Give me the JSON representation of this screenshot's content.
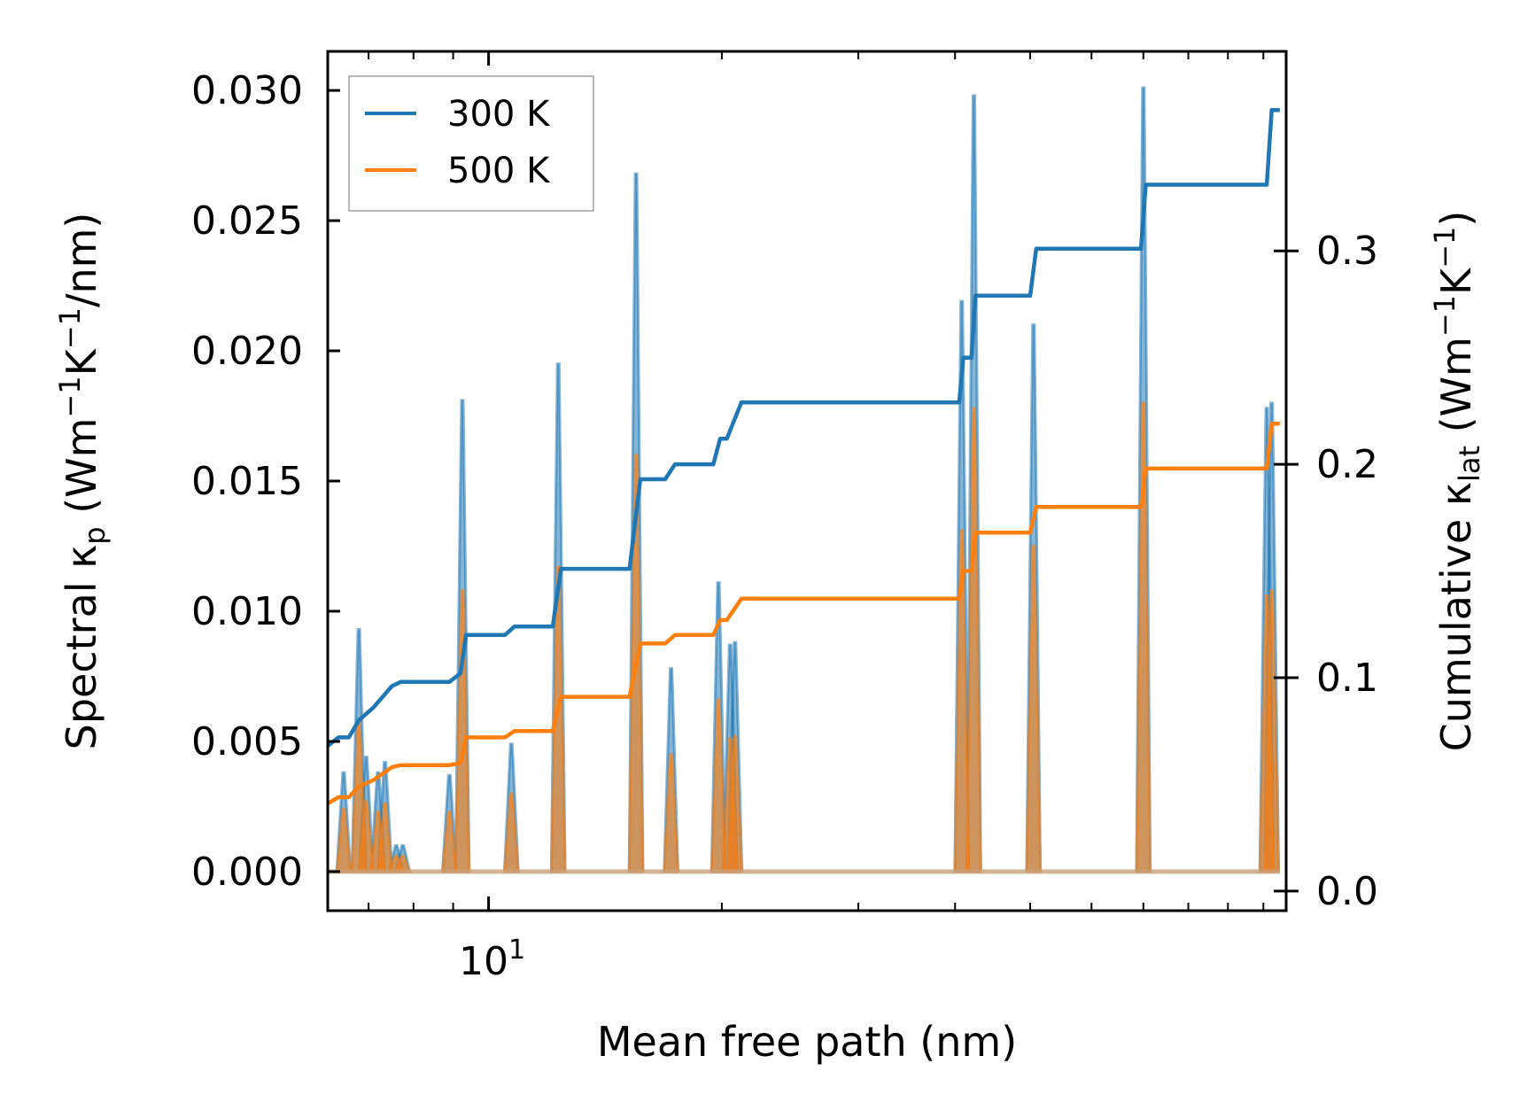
{
  "chart_data": {
    "type": "line",
    "xscale": "log",
    "xlabel": "Mean free path (nm)",
    "xlim": [
      6.2,
      107
    ],
    "x_ticks": [
      {
        "value": 10,
        "label": "10",
        "exponent": "1"
      }
    ],
    "x_minor_ticks": [
      7,
      8,
      9,
      20,
      30,
      40,
      50,
      60,
      70,
      80,
      90,
      100
    ],
    "left_axis": {
      "label_parts": [
        "Spectral κ",
        "p",
        " (Wm",
        "−1",
        "K",
        "−1",
        "/nm)"
      ],
      "ylim": [
        -0.0015,
        0.0315
      ],
      "ticks": [
        {
          "value": 0.0,
          "label": "0.000"
        },
        {
          "value": 0.005,
          "label": "0.005"
        },
        {
          "value": 0.01,
          "label": "0.010"
        },
        {
          "value": 0.015,
          "label": "0.015"
        },
        {
          "value": 0.02,
          "label": "0.020"
        },
        {
          "value": 0.025,
          "label": "0.025"
        },
        {
          "value": 0.03,
          "label": "0.030"
        }
      ]
    },
    "right_axis": {
      "label_parts": [
        "Cumulative κ",
        "lat",
        " (Wm",
        "−1",
        "K",
        "−1",
        ")"
      ],
      "ylim": [
        -0.0092,
        0.3935
      ],
      "ticks": [
        {
          "value": 0.0,
          "label": "0.0"
        },
        {
          "value": 0.1,
          "label": "0.1"
        },
        {
          "value": 0.2,
          "label": "0.2"
        },
        {
          "value": 0.3,
          "label": "0.3"
        }
      ]
    },
    "legend": {
      "position": "top-left",
      "entries": [
        {
          "name": "300 K",
          "color": "#1f77b4"
        },
        {
          "name": "500 K",
          "color": "#ff7f0e"
        }
      ]
    },
    "spectral_series": [
      {
        "name": "300 K spectral",
        "color": "#1f77b4",
        "peaks": [
          {
            "x": 6.5,
            "y": 0.0038
          },
          {
            "x": 6.8,
            "y": 0.0093
          },
          {
            "x": 6.95,
            "y": 0.0044
          },
          {
            "x": 7.2,
            "y": 0.0038
          },
          {
            "x": 7.35,
            "y": 0.0042
          },
          {
            "x": 7.6,
            "y": 0.001
          },
          {
            "x": 7.75,
            "y": 0.001
          },
          {
            "x": 8.9,
            "y": 0.0037
          },
          {
            "x": 9.25,
            "y": 0.0181
          },
          {
            "x": 10.7,
            "y": 0.0049
          },
          {
            "x": 12.3,
            "y": 0.0195
          },
          {
            "x": 15.5,
            "y": 0.0268
          },
          {
            "x": 17.2,
            "y": 0.0078
          },
          {
            "x": 19.8,
            "y": 0.0111
          },
          {
            "x": 20.5,
            "y": 0.0087
          },
          {
            "x": 20.8,
            "y": 0.0088
          },
          {
            "x": 40.8,
            "y": 0.0219
          },
          {
            "x": 42.3,
            "y": 0.0298
          },
          {
            "x": 50.5,
            "y": 0.021
          },
          {
            "x": 70.0,
            "y": 0.0301
          },
          {
            "x": 101.0,
            "y": 0.0178
          },
          {
            "x": 102.5,
            "y": 0.018
          }
        ]
      },
      {
        "name": "500 K spectral",
        "color": "#ff7f0e",
        "peaks": [
          {
            "x": 6.5,
            "y": 0.0024
          },
          {
            "x": 6.8,
            "y": 0.0058
          },
          {
            "x": 6.95,
            "y": 0.0027
          },
          {
            "x": 7.2,
            "y": 0.0023
          },
          {
            "x": 7.35,
            "y": 0.0026
          },
          {
            "x": 7.6,
            "y": 0.0006
          },
          {
            "x": 7.75,
            "y": 0.0006
          },
          {
            "x": 8.9,
            "y": 0.0023
          },
          {
            "x": 9.25,
            "y": 0.0108
          },
          {
            "x": 10.7,
            "y": 0.003
          },
          {
            "x": 12.3,
            "y": 0.0117
          },
          {
            "x": 15.5,
            "y": 0.016
          },
          {
            "x": 17.2,
            "y": 0.0045
          },
          {
            "x": 19.8,
            "y": 0.0066
          },
          {
            "x": 20.5,
            "y": 0.0051
          },
          {
            "x": 20.8,
            "y": 0.0052
          },
          {
            "x": 40.8,
            "y": 0.0131
          },
          {
            "x": 42.3,
            "y": 0.0178
          },
          {
            "x": 50.5,
            "y": 0.0125
          },
          {
            "x": 70.0,
            "y": 0.018
          },
          {
            "x": 101.0,
            "y": 0.0106
          },
          {
            "x": 102.5,
            "y": 0.0108
          }
        ]
      }
    ],
    "cumulative_series": [
      {
        "name": "300 K",
        "color": "#1f77b4",
        "x": [
          6.2,
          6.4,
          6.6,
          6.8,
          6.9,
          7.0,
          7.1,
          7.3,
          7.5,
          7.7,
          8.9,
          9.2,
          9.35,
          10.5,
          10.8,
          12.1,
          12.4,
          15.2,
          15.7,
          16.9,
          17.4,
          19.5,
          19.9,
          20.3,
          21.2,
          40.5,
          41.0,
          42.0,
          42.5,
          50.0,
          50.9,
          69.5,
          70.5,
          101.0,
          102.5,
          105.0
        ],
        "y": [
          0.068,
          0.072,
          0.072,
          0.08,
          0.082,
          0.084,
          0.086,
          0.091,
          0.096,
          0.098,
          0.098,
          0.102,
          0.12,
          0.12,
          0.124,
          0.124,
          0.151,
          0.151,
          0.193,
          0.193,
          0.2,
          0.2,
          0.212,
          0.212,
          0.229,
          0.229,
          0.25,
          0.25,
          0.279,
          0.279,
          0.301,
          0.301,
          0.331,
          0.331,
          0.366,
          0.366
        ]
      },
      {
        "name": "500 K",
        "color": "#ff7f0e",
        "x": [
          6.2,
          6.4,
          6.6,
          6.8,
          6.9,
          7.0,
          7.1,
          7.3,
          7.5,
          7.7,
          8.9,
          9.2,
          9.35,
          10.5,
          10.8,
          12.1,
          12.4,
          15.2,
          15.7,
          16.9,
          17.4,
          19.5,
          19.9,
          20.3,
          21.2,
          40.5,
          41.0,
          42.0,
          42.5,
          50.0,
          50.9,
          69.5,
          70.5,
          101.0,
          102.5,
          105.0
        ],
        "y": [
          0.041,
          0.044,
          0.044,
          0.049,
          0.05,
          0.051,
          0.052,
          0.055,
          0.058,
          0.059,
          0.059,
          0.06,
          0.072,
          0.072,
          0.075,
          0.075,
          0.091,
          0.091,
          0.116,
          0.116,
          0.12,
          0.12,
          0.127,
          0.127,
          0.137,
          0.137,
          0.15,
          0.15,
          0.168,
          0.168,
          0.18,
          0.18,
          0.198,
          0.198,
          0.219,
          0.219
        ]
      }
    ]
  }
}
